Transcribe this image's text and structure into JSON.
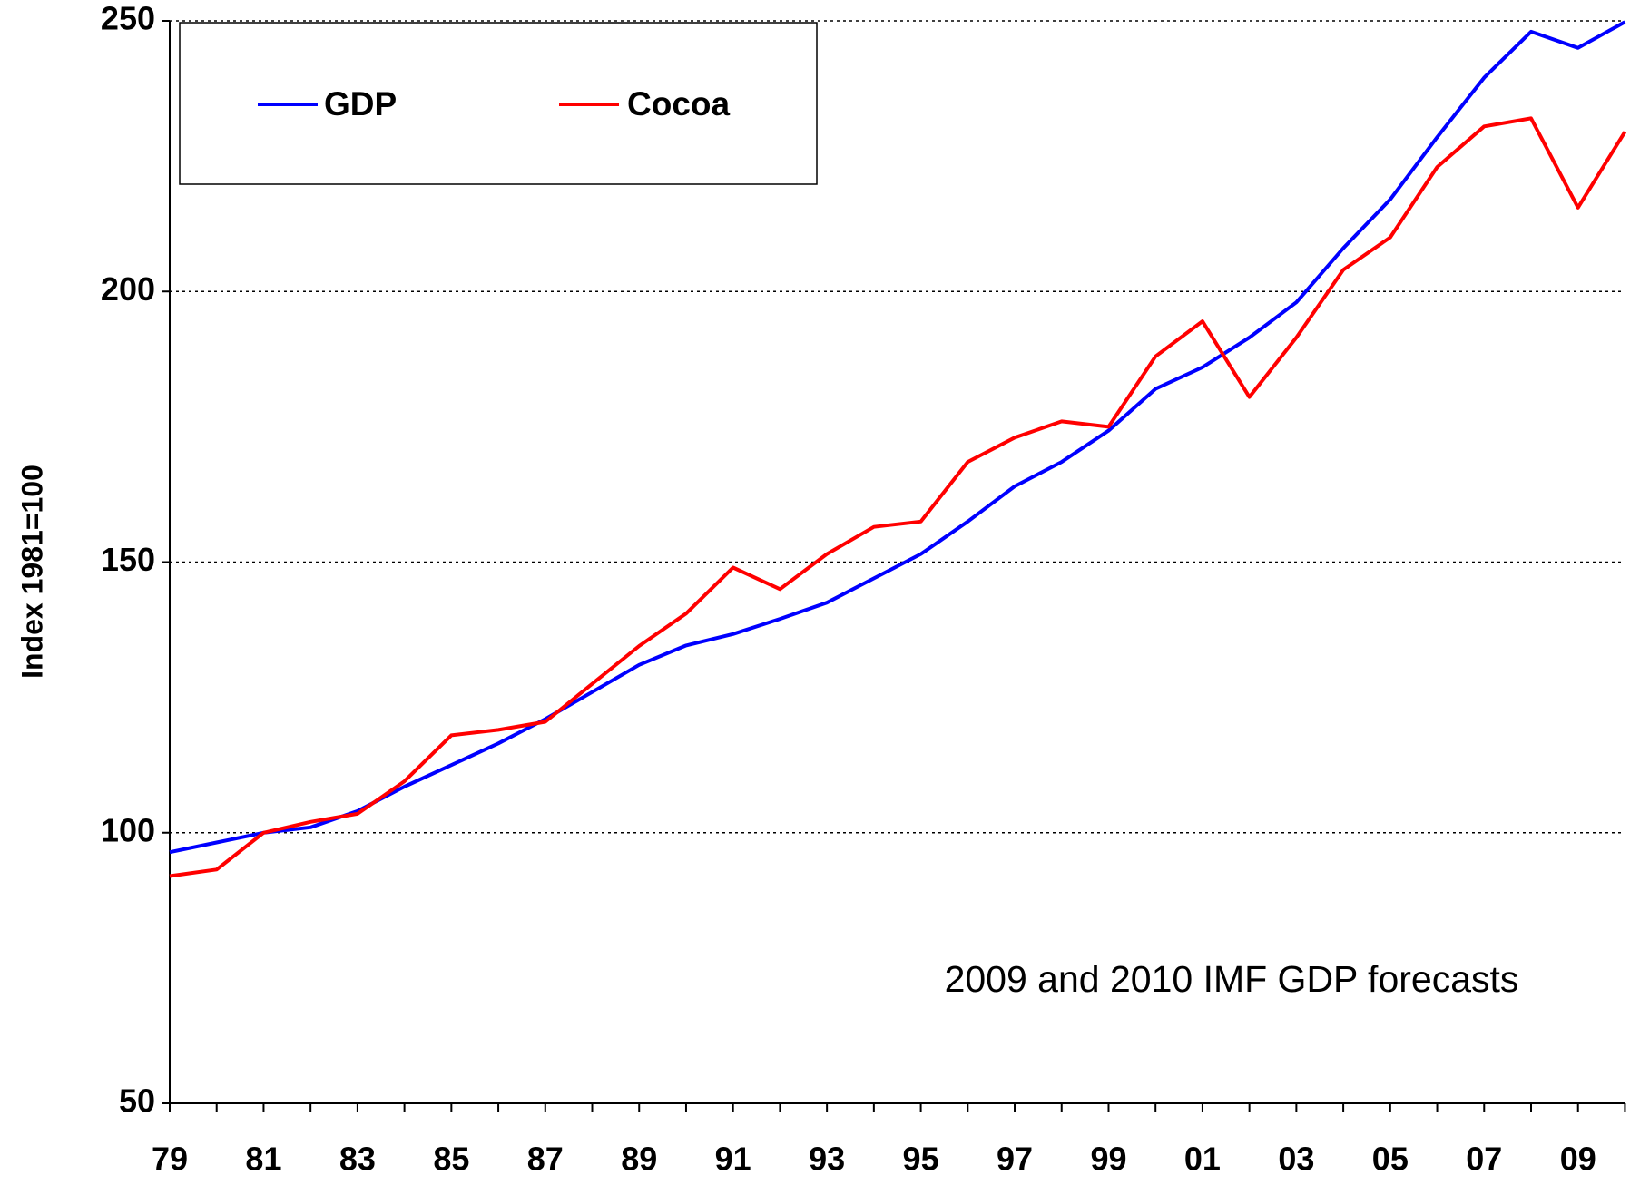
{
  "chart_data": {
    "type": "line",
    "y_label": "Index 1981=100",
    "annotation": "2009 and 2010 IMF GDP forecasts",
    "categories": [
      "79",
      null,
      "81",
      null,
      "83",
      null,
      "85",
      null,
      "87",
      null,
      "89",
      null,
      "91",
      null,
      "93",
      null,
      "95",
      null,
      "97",
      null,
      "99",
      null,
      "01",
      null,
      "03",
      null,
      "05",
      null,
      "07",
      null,
      "09",
      null
    ],
    "series": [
      {
        "name": "GDP",
        "color": "#0000ff",
        "values": [
          96.4,
          98.2,
          100,
          101,
          104,
          108.5,
          112.5,
          116.5,
          121,
          126,
          131,
          134.6,
          136.7,
          139.5,
          142.5,
          147,
          151.5,
          157.5,
          164,
          168.5,
          174.3,
          182,
          186,
          191.5,
          198,
          208,
          217,
          228.5,
          239.5,
          248,
          245,
          249.8
        ]
      },
      {
        "name": "Cocoa",
        "color": "#ff0000",
        "values": [
          92,
          93.2,
          100,
          102,
          103.5,
          109.5,
          118,
          119,
          120.5,
          127.5,
          134.5,
          140.5,
          149,
          145,
          151.5,
          156.5,
          157.5,
          168.5,
          173,
          176,
          175,
          188,
          194.5,
          180.5,
          191.5,
          204,
          210,
          223,
          230.5,
          232,
          215.5,
          229.5
        ]
      }
    ],
    "ylim": [
      50,
      250
    ],
    "yticks": [
      50,
      100,
      150,
      200,
      250
    ],
    "grid": true,
    "legend": "top-left"
  }
}
